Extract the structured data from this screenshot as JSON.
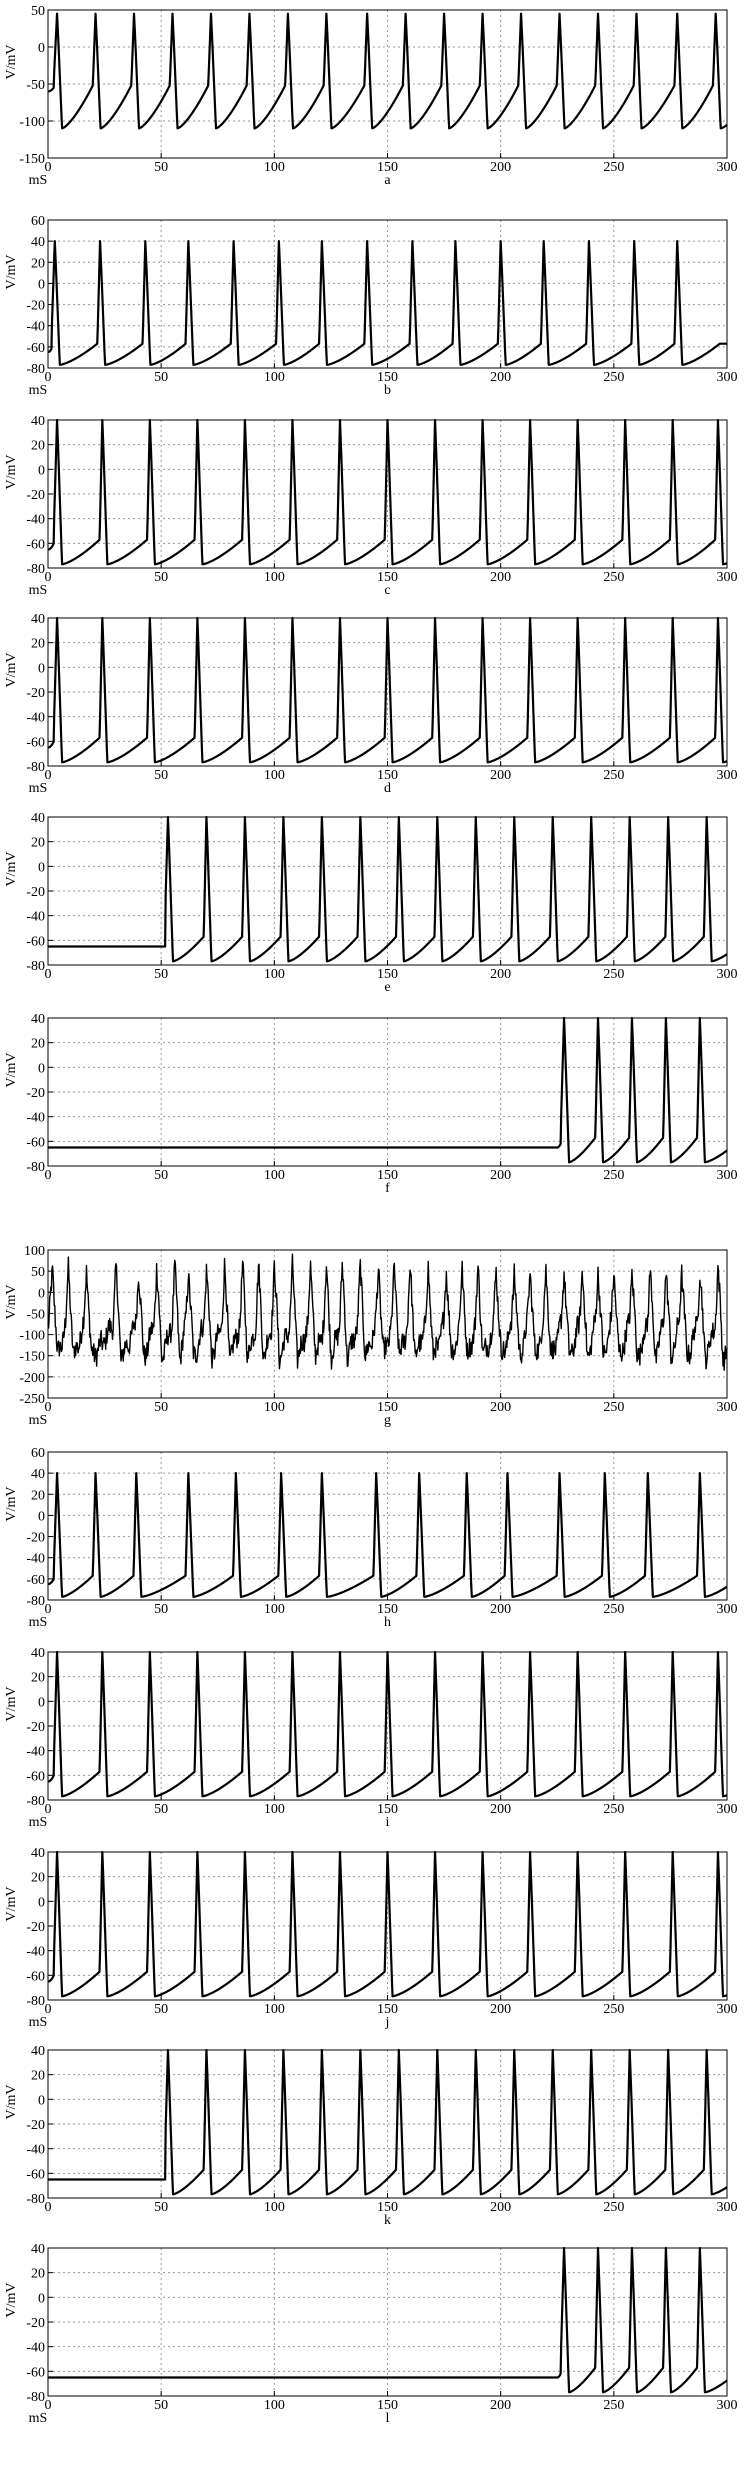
{
  "figure": {
    "x_unit_label": "mS",
    "y_unit_label": "V/mV"
  },
  "chart_data": [
    {
      "panel": "a",
      "type": "line",
      "ylabel": "V/mV",
      "xlabel": "mS",
      "caption": "a",
      "xlim": [
        0,
        300
      ],
      "ylim": [
        -150,
        50
      ],
      "x_ticks": [
        0,
        50,
        100,
        150,
        200,
        250,
        300
      ],
      "y_ticks": [
        -150,
        -100,
        -50,
        0,
        50
      ],
      "grid": true,
      "peak": 45,
      "rest": -60,
      "trough": -110,
      "spikes": [
        4,
        21,
        38,
        55,
        72,
        89,
        106,
        123,
        141,
        158,
        175,
        192,
        209,
        226,
        243,
        260,
        278,
        295
      ]
    },
    {
      "panel": "b",
      "type": "line",
      "ylabel": "V/mV",
      "xlabel": "mS",
      "caption": "b",
      "xlim": [
        0,
        300
      ],
      "ylim": [
        -80,
        60
      ],
      "x_ticks": [
        0,
        50,
        100,
        150,
        200,
        250,
        300
      ],
      "y_ticks": [
        -80,
        -60,
        -40,
        -20,
        0,
        20,
        40,
        60
      ],
      "grid": true,
      "peak": 40,
      "rest": -65,
      "trough": -77,
      "spikes": [
        3,
        23,
        43,
        62,
        82,
        102,
        121,
        141,
        161,
        180,
        200,
        219,
        239,
        259,
        278
      ]
    },
    {
      "panel": "c",
      "type": "line",
      "ylabel": "V/mV",
      "xlabel": "mS",
      "caption": "c",
      "xlim": [
        0,
        300
      ],
      "ylim": [
        -80,
        40
      ],
      "x_ticks": [
        0,
        50,
        100,
        150,
        200,
        250,
        300
      ],
      "y_ticks": [
        -80,
        -60,
        -40,
        -20,
        0,
        20,
        40
      ],
      "grid": true,
      "peak": 40,
      "rest": -65,
      "trough": -77,
      "spikes": [
        4,
        24,
        45,
        66,
        87,
        108,
        129,
        150,
        171,
        192,
        213,
        234,
        255,
        276,
        296
      ]
    },
    {
      "panel": "d",
      "type": "line",
      "ylabel": "V/mV",
      "xlabel": "mS",
      "caption": "d",
      "xlim": [
        0,
        300
      ],
      "ylim": [
        -80,
        40
      ],
      "x_ticks": [
        0,
        50,
        100,
        150,
        200,
        250,
        300
      ],
      "y_ticks": [
        -80,
        -60,
        -40,
        -20,
        0,
        20,
        40
      ],
      "grid": true,
      "peak": 40,
      "rest": -65,
      "trough": -77,
      "spikes": [
        4,
        24,
        45,
        66,
        87,
        108,
        129,
        150,
        171,
        192,
        213,
        234,
        255,
        276,
        296
      ]
    },
    {
      "panel": "e",
      "type": "line",
      "ylabel": "V/mV",
      "xlabel": "",
      "caption": "e",
      "xlim": [
        0,
        300
      ],
      "ylim": [
        -80,
        40
      ],
      "x_ticks": [
        0,
        50,
        100,
        150,
        200,
        250,
        300
      ],
      "y_ticks": [
        -80,
        -60,
        -40,
        -20,
        0,
        20,
        40
      ],
      "grid": true,
      "peak": 40,
      "rest": -65,
      "trough": -77,
      "onset": 52,
      "spikes": [
        53,
        70,
        87,
        104,
        121,
        138,
        155,
        172,
        189,
        206,
        223,
        240,
        257,
        274,
        291
      ]
    },
    {
      "panel": "f",
      "type": "line",
      "ylabel": "V/mV",
      "xlabel": "",
      "caption": "f",
      "xlim": [
        0,
        300
      ],
      "ylim": [
        -80,
        40
      ],
      "x_ticks": [
        0,
        50,
        100,
        150,
        200,
        250,
        300
      ],
      "y_ticks": [
        -80,
        -60,
        -40,
        -20,
        0,
        20,
        40
      ],
      "grid": true,
      "peak": 40,
      "rest": -65,
      "trough": -77,
      "onset": 225,
      "spikes": [
        228,
        243,
        258,
        273,
        288
      ]
    },
    {
      "panel": "g",
      "type": "line",
      "ylabel": "V/mV",
      "xlabel": "mS",
      "caption": "g",
      "xlim": [
        0,
        300
      ],
      "ylim": [
        -250,
        100
      ],
      "x_ticks": [
        0,
        50,
        100,
        150,
        200,
        250,
        300
      ],
      "y_ticks": [
        -250,
        -200,
        -150,
        -100,
        -50,
        0,
        50,
        100
      ],
      "grid": true,
      "noisy": true,
      "peak": 55,
      "rest": -80,
      "trough": -150,
      "spikes": [
        2,
        9,
        17,
        30,
        40,
        48,
        56,
        62,
        70,
        78,
        86,
        93,
        100,
        108,
        116,
        123,
        130,
        138,
        146,
        153,
        160,
        168,
        176,
        183,
        190,
        198,
        206,
        213,
        220,
        228,
        236,
        243,
        250,
        258,
        266,
        273,
        280,
        288,
        296
      ]
    },
    {
      "panel": "h",
      "type": "line",
      "ylabel": "V/mV",
      "xlabel": "mS",
      "caption": "h",
      "xlim": [
        0,
        300
      ],
      "ylim": [
        -80,
        60
      ],
      "x_ticks": [
        0,
        50,
        100,
        150,
        200,
        250,
        300
      ],
      "y_ticks": [
        -80,
        -60,
        -40,
        -20,
        0,
        20,
        40,
        60
      ],
      "grid": true,
      "peak": 40,
      "rest": -65,
      "trough": -77,
      "spikes": [
        4,
        21,
        39,
        62,
        83,
        103,
        121,
        145,
        164,
        185,
        203,
        226,
        246,
        265,
        288
      ]
    },
    {
      "panel": "i",
      "type": "line",
      "ylabel": "V/mV",
      "xlabel": "mS",
      "caption": "i",
      "xlim": [
        0,
        300
      ],
      "ylim": [
        -80,
        40
      ],
      "x_ticks": [
        0,
        50,
        100,
        150,
        200,
        250,
        300
      ],
      "y_ticks": [
        -80,
        -60,
        -40,
        -20,
        0,
        20,
        40
      ],
      "grid": true,
      "peak": 40,
      "rest": -65,
      "trough": -77,
      "spikes": [
        4,
        24,
        45,
        66,
        87,
        108,
        129,
        150,
        171,
        192,
        213,
        234,
        255,
        276,
        296
      ]
    },
    {
      "panel": "j",
      "type": "line",
      "ylabel": "V/mV",
      "xlabel": "mS",
      "caption": "j",
      "xlim": [
        0,
        300
      ],
      "ylim": [
        -80,
        40
      ],
      "x_ticks": [
        0,
        50,
        100,
        150,
        200,
        250,
        300
      ],
      "y_ticks": [
        -80,
        -60,
        -40,
        -20,
        0,
        20,
        40
      ],
      "grid": true,
      "peak": 40,
      "rest": -65,
      "trough": -77,
      "spikes": [
        4,
        24,
        45,
        66,
        87,
        108,
        129,
        150,
        171,
        192,
        213,
        234,
        255,
        276,
        296
      ]
    },
    {
      "panel": "k",
      "type": "line",
      "ylabel": "V/mV",
      "xlabel": "",
      "caption": "k",
      "xlim": [
        0,
        300
      ],
      "ylim": [
        -80,
        40
      ],
      "x_ticks": [
        0,
        50,
        100,
        150,
        200,
        250,
        300
      ],
      "y_ticks": [
        -80,
        -60,
        -40,
        -20,
        0,
        20,
        40
      ],
      "grid": true,
      "peak": 40,
      "rest": -65,
      "trough": -77,
      "onset": 52,
      "spikes": [
        53,
        70,
        87,
        104,
        121,
        138,
        155,
        172,
        189,
        206,
        223,
        240,
        257,
        274,
        291
      ]
    },
    {
      "panel": "l",
      "type": "line",
      "ylabel": "V/mV",
      "xlabel": "mS",
      "caption": "l",
      "xlim": [
        0,
        300
      ],
      "ylim": [
        -80,
        40
      ],
      "x_ticks": [
        0,
        50,
        100,
        150,
        200,
        250,
        300
      ],
      "y_ticks": [
        -80,
        -60,
        -40,
        -20,
        0,
        20,
        40
      ],
      "grid": true,
      "peak": 40,
      "rest": -65,
      "trough": -77,
      "onset": 225,
      "spikes": [
        228,
        243,
        258,
        273,
        288
      ]
    }
  ]
}
